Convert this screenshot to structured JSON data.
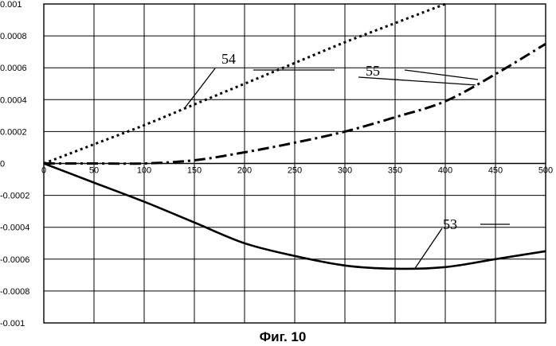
{
  "chart_data": {
    "type": "line",
    "title": "",
    "caption": "Фиг. 10",
    "xlabel": "",
    "ylabel": "",
    "xlim": [
      0,
      500
    ],
    "ylim": [
      -0.001,
      0.001
    ],
    "grid": true,
    "x_ticks": [
      "0",
      "50",
      "100",
      "150",
      "200",
      "250",
      "300",
      "350",
      "400",
      "450",
      "500"
    ],
    "y_ticks": [
      "0.001",
      "0.0008",
      "0.0006",
      "0.0004",
      "0.0002",
      "0",
      "-0.0002",
      "-0.0004",
      "-0.0006",
      "-0.0008",
      "-0.001"
    ],
    "y_tick_values": [
      0.001,
      0.0008,
      0.0006,
      0.0004,
      0.0002,
      0,
      -0.0002,
      -0.0004,
      -0.0006,
      -0.0008,
      -0.001
    ],
    "series": [
      {
        "name": "54",
        "style": "dotted",
        "x": [
          0,
          50,
          100,
          150,
          200,
          250,
          300,
          350,
          400
        ],
        "y": [
          0,
          0.00012,
          0.00024,
          0.00037,
          0.0005,
          0.00063,
          0.00076,
          0.00088,
          0.001
        ]
      },
      {
        "name": "55",
        "style": "dash-dot",
        "x": [
          0,
          50,
          100,
          150,
          200,
          250,
          300,
          350,
          400,
          450,
          500
        ],
        "y": [
          0,
          0,
          0,
          2e-05,
          7e-05,
          0.00013,
          0.0002,
          0.00029,
          0.00039,
          0.00056,
          0.00075
        ]
      },
      {
        "name": "53",
        "style": "solid",
        "x": [
          0,
          50,
          100,
          150,
          200,
          250,
          300,
          350,
          400,
          450,
          500
        ],
        "y": [
          0,
          -0.00012,
          -0.00024,
          -0.00037,
          -0.0005,
          -0.00058,
          -0.00064,
          -0.00066,
          -0.00065,
          -0.0006,
          -0.00055
        ]
      }
    ],
    "annotations": [
      {
        "text": "54",
        "series": "54",
        "at_x": 140
      },
      {
        "text": "55",
        "series": "55",
        "at_x": 430
      },
      {
        "text": "53",
        "series": "53",
        "at_x": 370
      }
    ]
  }
}
